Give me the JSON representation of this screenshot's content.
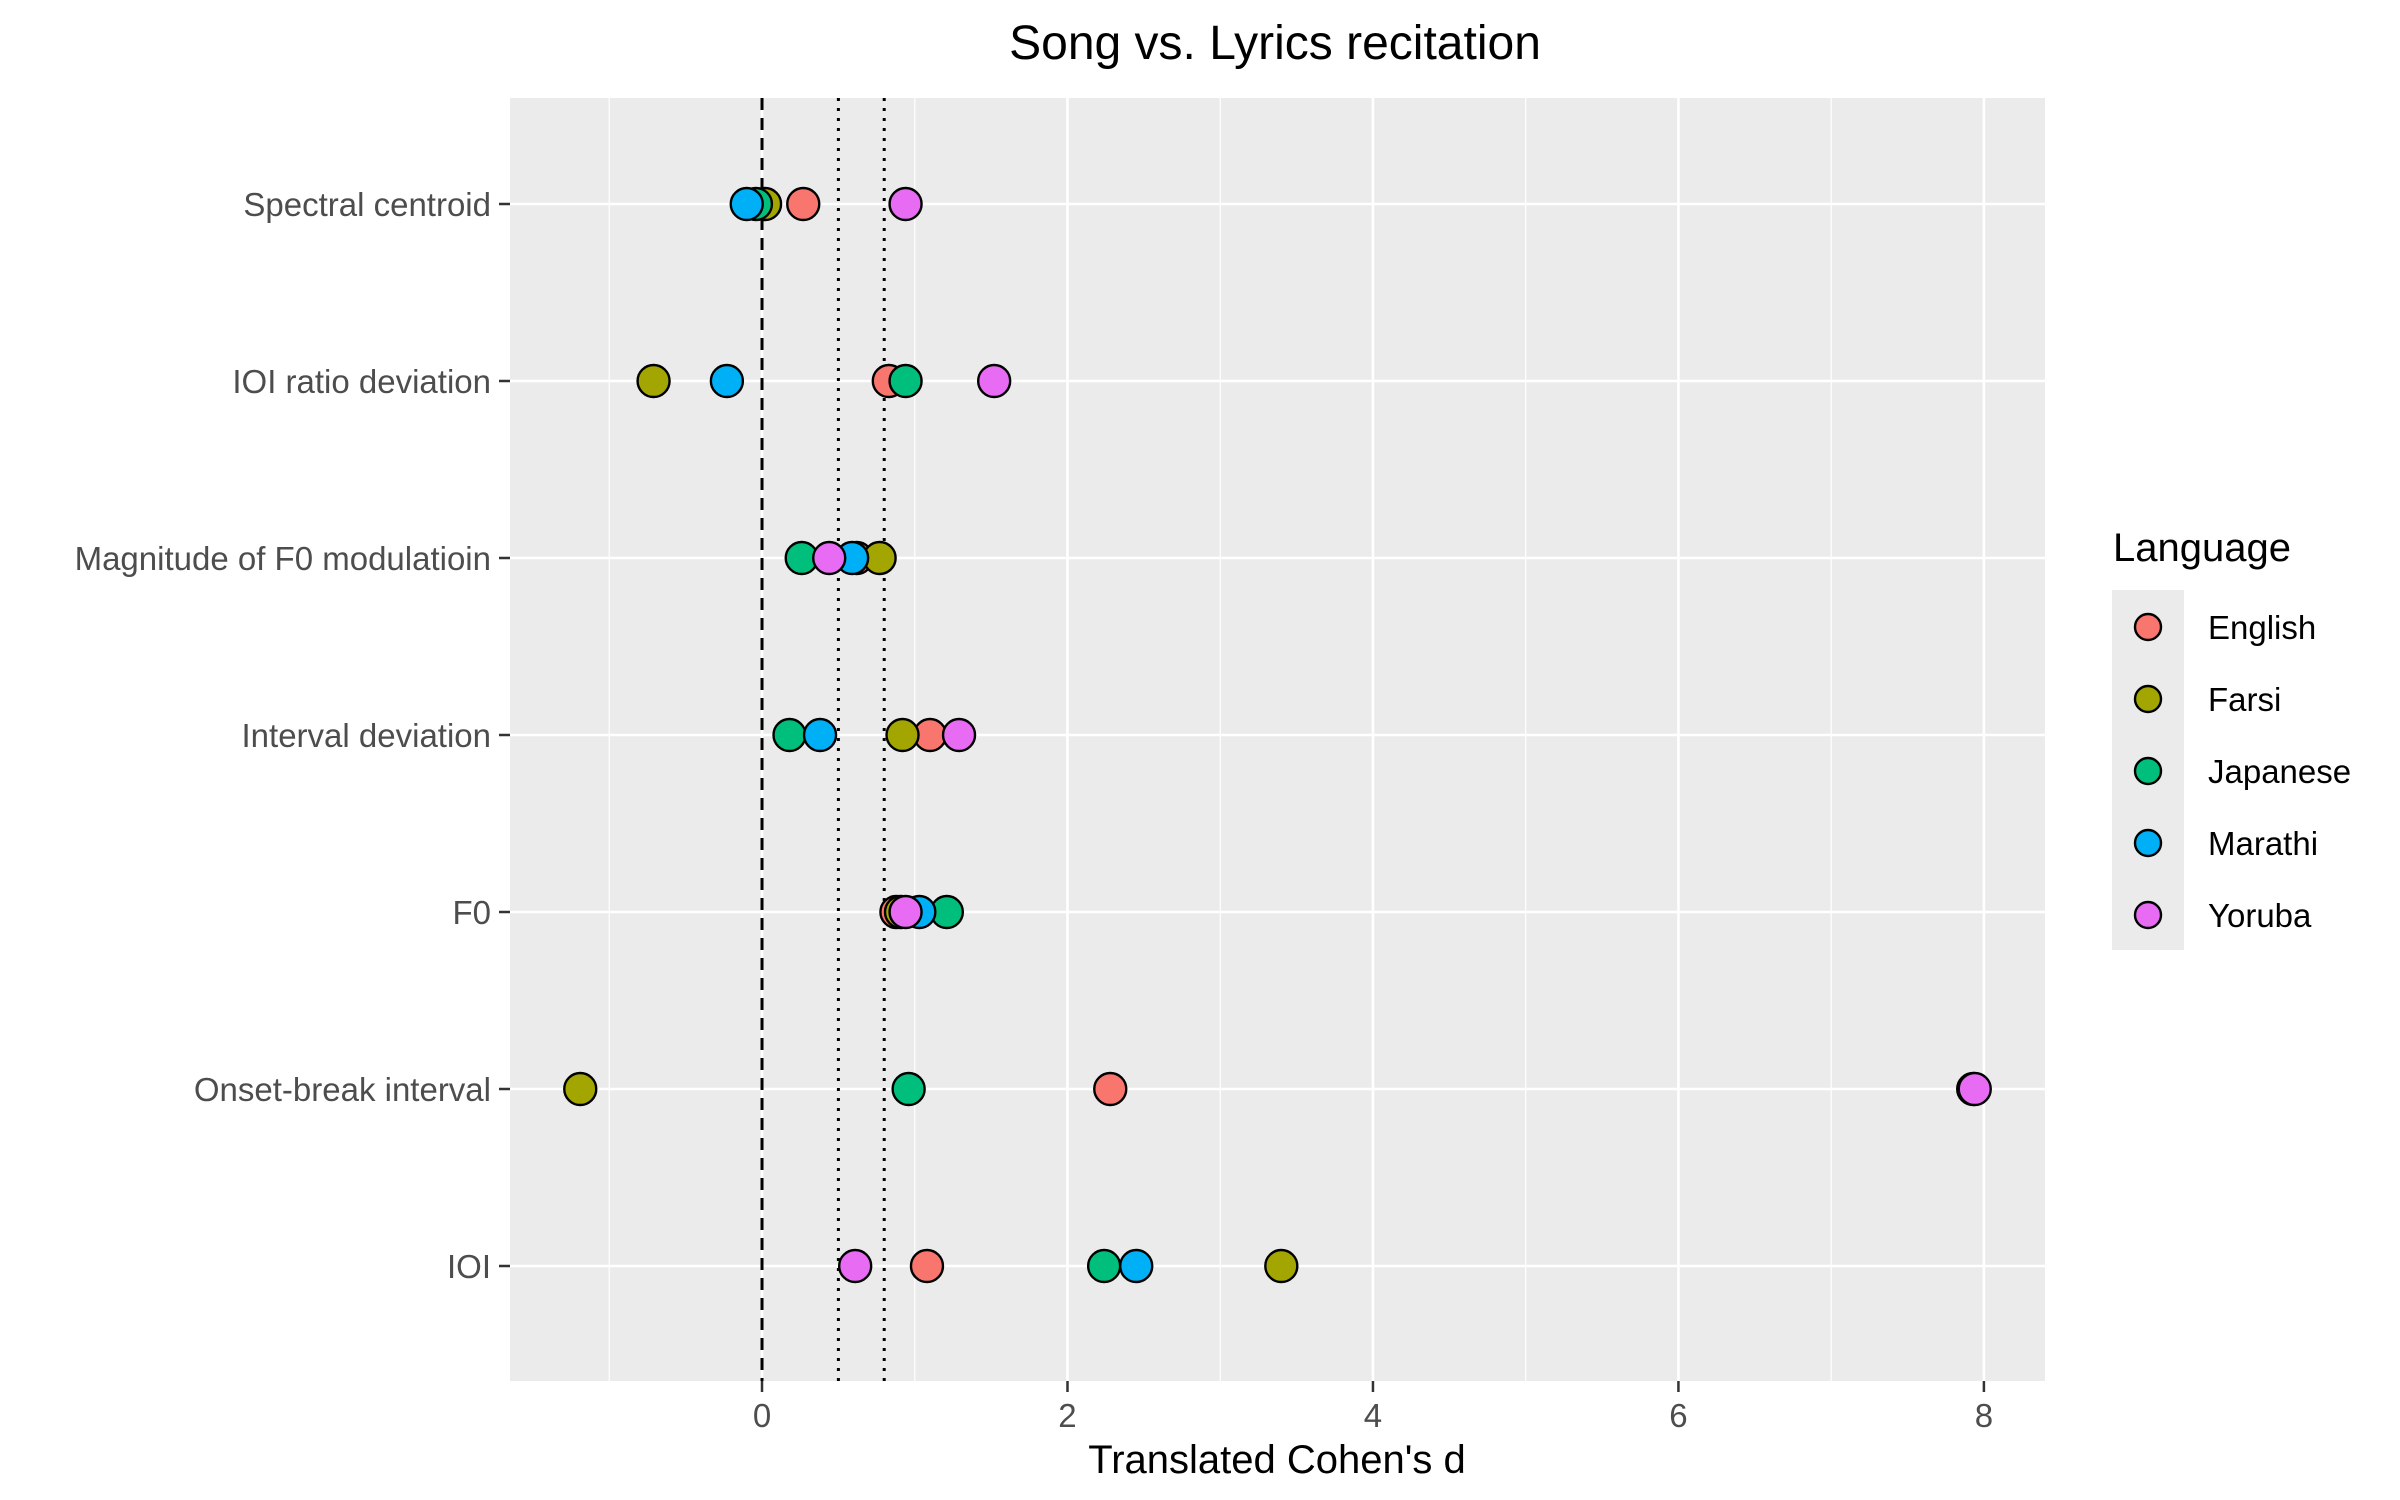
{
  "chart_data": {
    "type": "scatter",
    "title": "Song vs. Lyrics recitation",
    "xlabel": "Translated Cohen's d",
    "ylabel": "",
    "xlim": [
      -1.65,
      8.4
    ],
    "x_ticks": [
      0,
      2,
      4,
      6,
      8
    ],
    "x_tick_labels": [
      "0",
      "2",
      "4",
      "6",
      "8"
    ],
    "categories": [
      "Spectral centroid",
      "IOI ratio deviation",
      "Magnitude of F0 modulatioin",
      "Interval deviation",
      "F0",
      "Onset-break interval",
      "IOI"
    ],
    "reference_lines": [
      {
        "x": 0,
        "style": "dashed"
      },
      {
        "x": 0.5,
        "style": "dotted"
      },
      {
        "x": 0.8,
        "style": "dotted"
      }
    ],
    "grid": true,
    "legend": {
      "title": "Language",
      "position": "right"
    },
    "series": [
      {
        "name": "English",
        "color": "#F8766D",
        "points": [
          {
            "category": "Spectral centroid",
            "x": 0.27
          },
          {
            "category": "IOI ratio deviation",
            "x": 0.83
          },
          {
            "category": "Magnitude of F0 modulatioin",
            "x": 0.62
          },
          {
            "category": "Interval deviation",
            "x": 1.1
          },
          {
            "category": "F0",
            "x": 0.88
          },
          {
            "category": "Onset-break interval",
            "x": 2.28
          },
          {
            "category": "IOI",
            "x": 1.08
          }
        ]
      },
      {
        "name": "Farsi",
        "color": "#A3A500",
        "points": [
          {
            "category": "Spectral centroid",
            "x": 0.02
          },
          {
            "category": "IOI ratio deviation",
            "x": -0.71
          },
          {
            "category": "Magnitude of F0 modulatioin",
            "x": 0.77
          },
          {
            "category": "Interval deviation",
            "x": 0.92
          },
          {
            "category": "F0",
            "x": 0.91
          },
          {
            "category": "Onset-break interval",
            "x": -1.19
          },
          {
            "category": "IOI",
            "x": 3.4
          }
        ]
      },
      {
        "name": "Japanese",
        "color": "#00BF7D",
        "points": [
          {
            "category": "Spectral centroid",
            "x": -0.04
          },
          {
            "category": "IOI ratio deviation",
            "x": 0.94
          },
          {
            "category": "Magnitude of F0 modulatioin",
            "x": 0.26
          },
          {
            "category": "Interval deviation",
            "x": 0.18
          },
          {
            "category": "F0",
            "x": 1.21
          },
          {
            "category": "Onset-break interval",
            "x": 0.96
          },
          {
            "category": "IOI",
            "x": 2.24
          }
        ]
      },
      {
        "name": "Marathi",
        "color": "#00B0F6",
        "points": [
          {
            "category": "Spectral centroid",
            "x": -0.1
          },
          {
            "category": "IOI ratio deviation",
            "x": -0.23
          },
          {
            "category": "Magnitude of F0 modulatioin",
            "x": 0.59
          },
          {
            "category": "Interval deviation",
            "x": 0.38
          },
          {
            "category": "F0",
            "x": 1.03
          },
          {
            "category": "Onset-break interval",
            "x": 7.93
          },
          {
            "category": "IOI",
            "x": 2.45
          }
        ]
      },
      {
        "name": "Yoruba",
        "color": "#E76BF3",
        "points": [
          {
            "category": "Spectral centroid",
            "x": 0.94
          },
          {
            "category": "IOI ratio deviation",
            "x": 1.52
          },
          {
            "category": "Magnitude of F0 modulatioin",
            "x": 0.44
          },
          {
            "category": "Interval deviation",
            "x": 1.29
          },
          {
            "category": "F0",
            "x": 0.94
          },
          {
            "category": "Onset-break interval",
            "x": 7.94
          },
          {
            "category": "IOI",
            "x": 0.61
          }
        ]
      }
    ]
  }
}
